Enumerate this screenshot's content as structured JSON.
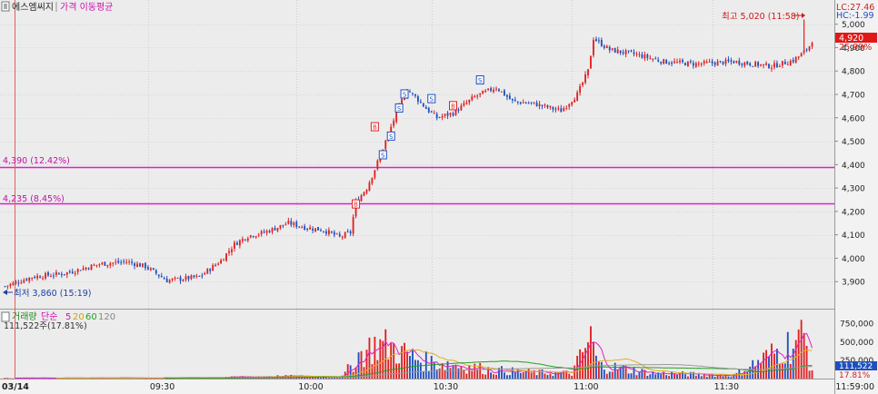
{
  "header": {
    "stock_name": "에스엠씨지",
    "indicator_label": "가격 이동평균",
    "lc_label": "LC:27.46",
    "hc_label": "HC:-1.99"
  },
  "annotations": {
    "high": "최고 5,020 (11:58)",
    "low": "최저 3,860 (15:19)",
    "current_price": "4,920",
    "current_pct": "25.99%",
    "line1_label": "4,390 (12.42%)",
    "line2_label": "4,235 (8.45%)"
  },
  "volume_header": {
    "title": "거래량",
    "ma_label": "단순",
    "ma_periods": [
      "5",
      "20",
      "60",
      "120"
    ],
    "info": "111,522주(17.81%)",
    "current_value": "111,522",
    "current_pct": "17.81%"
  },
  "colors": {
    "up": "#e02020",
    "down": "#1f4fbf",
    "hline": "#e020c8",
    "ma5": "#e020c8",
    "ma20": "#e0b020",
    "ma60": "#20a020",
    "ma120": "#9a9a9a"
  },
  "chart_data": [
    {
      "type": "candlestick",
      "title": "",
      "ylim": [
        3800,
        5080
      ],
      "y_ticks": [
        "3,900",
        "4,000",
        "4,100",
        "4,200",
        "4,300",
        "4,400",
        "4,500",
        "4,600",
        "4,700",
        "4,800",
        "4,900",
        "5,000"
      ],
      "x_ticks": [
        "03/14",
        "09:30",
        "10:00",
        "10:30",
        "11:00",
        "11:30",
        "11:59:00"
      ],
      "horizontal_lines": [
        4390,
        4235
      ],
      "price_keypoints": [
        [
          0,
          3880
        ],
        [
          10,
          3920
        ],
        [
          22,
          3935
        ],
        [
          35,
          3975
        ],
        [
          45,
          3985
        ],
        [
          52,
          3965
        ],
        [
          60,
          3905
        ],
        [
          72,
          3920
        ],
        [
          80,
          3990
        ],
        [
          85,
          4060
        ],
        [
          90,
          4095
        ],
        [
          96,
          4110
        ],
        [
          105,
          4150
        ],
        [
          112,
          4130
        ],
        [
          118,
          4120
        ],
        [
          124,
          4090
        ],
        [
          128,
          4110
        ],
        [
          130,
          4240
        ],
        [
          134,
          4300
        ],
        [
          137,
          4380
        ],
        [
          142,
          4530
        ],
        [
          146,
          4650
        ],
        [
          149,
          4720
        ],
        [
          152,
          4690
        ],
        [
          156,
          4640
        ],
        [
          160,
          4600
        ],
        [
          166,
          4620
        ],
        [
          174,
          4690
        ],
        [
          182,
          4730
        ],
        [
          188,
          4670
        ],
        [
          196,
          4660
        ],
        [
          206,
          4630
        ],
        [
          212,
          4700
        ],
        [
          216,
          4800
        ],
        [
          218,
          4940
        ],
        [
          224,
          4890
        ],
        [
          234,
          4870
        ],
        [
          244,
          4840
        ],
        [
          256,
          4830
        ],
        [
          270,
          4840
        ],
        [
          284,
          4820
        ],
        [
          292,
          4845
        ],
        [
          296,
          4880
        ],
        [
          299,
          4920
        ]
      ],
      "volume_keypoints": [
        [
          0,
          8
        ],
        [
          40,
          12
        ],
        [
          60,
          6
        ],
        [
          82,
          20
        ],
        [
          100,
          35
        ],
        [
          125,
          30
        ],
        [
          131,
          350
        ],
        [
          138,
          520
        ],
        [
          143,
          470
        ],
        [
          148,
          380
        ],
        [
          155,
          260
        ],
        [
          165,
          220
        ],
        [
          180,
          130
        ],
        [
          195,
          90
        ],
        [
          210,
          80
        ],
        [
          217,
          600
        ],
        [
          220,
          200
        ],
        [
          240,
          80
        ],
        [
          270,
          50
        ],
        [
          296,
          630
        ],
        [
          299,
          111
        ]
      ],
      "volume_ylim": [
        0,
        850
      ],
      "volume_y_ticks": [
        "250,000",
        "500,000",
        "750,000"
      ],
      "volume_unit": "thousands (values ×1000)"
    }
  ]
}
